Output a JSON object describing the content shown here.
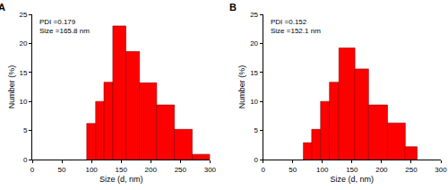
{
  "chart_data": [
    {
      "type": "histogram",
      "title": "A",
      "x_label": "Size (d, nm)",
      "y_label": "Number (%)",
      "annotations": [
        "PDI =0.179",
        "Size =165.8 nm"
      ],
      "bins": [
        92,
        107,
        121,
        136,
        158,
        181,
        210,
        240,
        270,
        300
      ],
      "values": [
        6.2,
        10,
        13.3,
        23,
        18.6,
        13.2,
        9.4,
        5.2,
        0.9
      ],
      "color": "#ff0000",
      "xlim": [
        0,
        300
      ],
      "xticks": [
        0,
        50,
        100,
        150,
        200,
        250,
        300
      ],
      "ylim": [
        0,
        25
      ],
      "yticks": [
        0,
        5,
        10,
        15,
        20,
        25
      ],
      "grid": false
    },
    {
      "type": "histogram",
      "title": "B",
      "x_label": "Size (d, nm)",
      "y_label": "Number (%)",
      "annotations": [
        "PDI =0.152",
        "Size =152.1 nm"
      ],
      "bins": [
        68,
        82,
        97,
        112,
        128,
        155,
        178,
        210,
        240,
        260
      ],
      "values": [
        2.9,
        5.2,
        10,
        13.3,
        19.2,
        15.6,
        9.4,
        6.3,
        2.2
      ],
      "color": "#ff0000",
      "xlim": [
        0,
        300
      ],
      "xticks": [
        0,
        50,
        100,
        150,
        200,
        250,
        300
      ],
      "ylim": [
        0,
        25
      ],
      "yticks": [
        0,
        5,
        10,
        15,
        20,
        25
      ],
      "grid": false
    }
  ]
}
